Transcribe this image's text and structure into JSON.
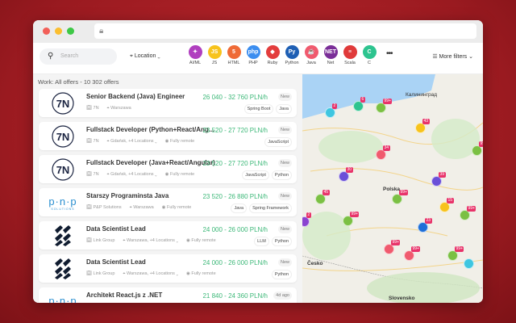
{
  "toolbar": {
    "search_placeholder": "Search",
    "location_label": "Location",
    "more_label": "•••",
    "more_filters_label": "More filters",
    "skills": [
      {
        "label": "AI/ML",
        "color": "#b03fbf",
        "glyph": "✦"
      },
      {
        "label": "JS",
        "color": "#f7c31c",
        "glyph": "JS"
      },
      {
        "label": "HTML",
        "color": "#ef6a36",
        "glyph": "5"
      },
      {
        "label": "PHP",
        "color": "#3c8ef0",
        "glyph": "php"
      },
      {
        "label": "Ruby",
        "color": "#e33d3d",
        "glyph": "◆"
      },
      {
        "label": "Python",
        "color": "#1e5fb4",
        "glyph": "Py"
      },
      {
        "label": "Java",
        "color": "#f05a6e",
        "glyph": "☕"
      },
      {
        "label": "Net",
        "color": "#7a2e98",
        "glyph": "NET"
      },
      {
        "label": "Scala",
        "color": "#e03a3a",
        "glyph": "≡"
      },
      {
        "label": "C",
        "color": "#2dc48f",
        "glyph": "C"
      }
    ]
  },
  "list": {
    "count_label": "Work: All offers - 10 302 offers",
    "offers": [
      {
        "title": "Senior Backend (Java) Engineer",
        "salary": "26 040 - 32 760 PLN/h",
        "badge": "New",
        "company": "7N",
        "location": "Warszawa",
        "remote": "",
        "tags": [
          "Spring Boot",
          "Java"
        ],
        "logo": "7N"
      },
      {
        "title": "Fullstack Developer (Python+React/Ang...",
        "salary": "23 520 - 27 720 PLN/h",
        "badge": "New",
        "company": "7N",
        "location": "Gdańsk, +4 Locations ⌄",
        "remote": "Fully remote",
        "tags": [
          "JavaScript"
        ],
        "logo": "7N"
      },
      {
        "title": "Fullstack Developer (Java+React/Angular)",
        "salary": "23 520 - 27 720 PLN/h",
        "badge": "New",
        "company": "7N",
        "location": "Gdańsk, +4 Locations ⌄",
        "remote": "Fully remote",
        "tags": [
          "JavaScript",
          "Python"
        ],
        "logo": "7N"
      },
      {
        "title": "Starszy Programinsta Java",
        "salary": "23 520 - 26 880 PLN/h",
        "badge": "New",
        "company": "P&P Solutions",
        "location": "Warszawa",
        "remote": "Fully remote",
        "tags": [
          "Java",
          "Spring Framework"
        ],
        "logo": "PNP"
      },
      {
        "title": "Data Scientist Lead",
        "salary": "24 000 - 26 000 PLN/h",
        "badge": "New",
        "company": "Link Group",
        "location": "Warszawa, +4 Locations ⌄",
        "remote": "Fully remote",
        "tags": [
          "LLM",
          "Python"
        ],
        "logo": "LG"
      },
      {
        "title": "Data Scientist Lead",
        "salary": "24 000 - 26 000 PLN/h",
        "badge": "New",
        "company": "Link Group",
        "location": "Warszawa, +4 Locations ⌄",
        "remote": "Fully remote",
        "tags": [
          "Python"
        ],
        "logo": "LG"
      },
      {
        "title": "Architekt React.js z .NET",
        "salary": "21 840 - 24 360 PLN/h",
        "badge": "4d ago",
        "company": "",
        "location": "",
        "remote": "",
        "tags": [],
        "logo": "PNP"
      }
    ]
  },
  "map": {
    "labels": [
      "Калининград",
      "Polska",
      "Česko",
      "Slovensko"
    ],
    "markers": [
      {
        "count": "2",
        "color": "#3fc6e0"
      },
      {
        "count": "6",
        "color": "#2dc48f"
      },
      {
        "count": "99+",
        "color": "#7bc043"
      },
      {
        "count": "43",
        "color": "#f7c31c"
      },
      {
        "count": "34",
        "color": "#f05a6e"
      },
      {
        "count": "99+",
        "color": "#7bc043"
      },
      {
        "count": "30",
        "color": "#6a4fd8"
      },
      {
        "count": "39",
        "color": "#6a4fd8"
      },
      {
        "count": "45",
        "color": "#7bc043"
      },
      {
        "count": "99+",
        "color": "#7bc043"
      },
      {
        "count": "15",
        "color": "#f7c31c"
      },
      {
        "count": "99+",
        "color": "#7bc043"
      },
      {
        "count": "2",
        "color": "#8a44d0"
      },
      {
        "count": "99+",
        "color": "#7bc043"
      },
      {
        "count": "23",
        "color": "#1e6fd8"
      },
      {
        "count": "99+",
        "color": "#f05a6e"
      },
      {
        "count": "99+",
        "color": "#f05a6e"
      },
      {
        "count": "99+",
        "color": "#7bc043"
      },
      {
        "count": "",
        "color": "#3fc6e0"
      }
    ]
  }
}
